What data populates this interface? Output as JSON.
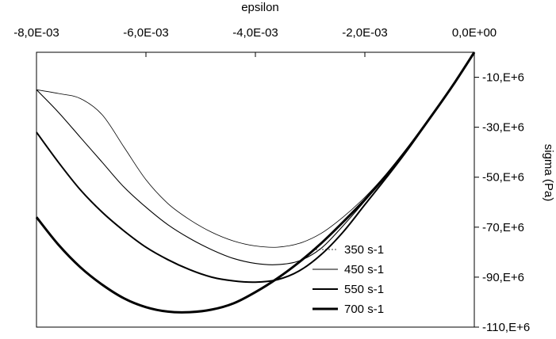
{
  "chart_data": {
    "type": "line",
    "xlabel": "epsilon",
    "ylabel": "sigma (Pa)",
    "xlim": [
      -0.008,
      0
    ],
    "ylim": [
      -110000000,
      0
    ],
    "x_axis_position": "top",
    "y_axis_position": "right",
    "grid": false,
    "legend_position": "bottom-right",
    "x_ticks": [
      {
        "value": -0.008,
        "label": "-8,0E-03"
      },
      {
        "value": -0.006,
        "label": "-6,0E-03"
      },
      {
        "value": -0.004,
        "label": "-4,0E-03"
      },
      {
        "value": -0.002,
        "label": "-2,0E-03"
      },
      {
        "value": 0,
        "label": "0,0E+00"
      }
    ],
    "y_ticks": [
      {
        "value": -10000000,
        "label": "-10,E+6"
      },
      {
        "value": -30000000,
        "label": "-30,E+6"
      },
      {
        "value": -50000000,
        "label": "-50,E+6"
      },
      {
        "value": -70000000,
        "label": "-70,E+6"
      },
      {
        "value": -90000000,
        "label": "-90,E+6"
      },
      {
        "value": -110000000,
        "label": "-110,E+6"
      }
    ],
    "series": [
      {
        "name": "350 s-1",
        "color": "#000000",
        "width": 0.8,
        "x": [
          -0.008,
          -0.0076,
          -0.0072,
          -0.0068,
          -0.0064,
          -0.006,
          -0.0056,
          -0.0052,
          -0.0048,
          -0.0044,
          -0.004,
          -0.0036,
          -0.0032,
          -0.0028,
          -0.0024,
          -0.002,
          -0.0016,
          -0.0012,
          -0.0008,
          -0.0004,
          0
        ],
        "y": [
          -15000000,
          -16500000,
          -18500000,
          -25000000,
          -38000000,
          -51000000,
          -60500000,
          -67000000,
          -72000000,
          -75500000,
          -77500000,
          -78000000,
          -76500000,
          -72500000,
          -66000000,
          -58000000,
          -48500000,
          -37500000,
          -26000000,
          -13500000,
          0
        ]
      },
      {
        "name": "450 s-1",
        "color": "#000000",
        "width": 1.1,
        "x": [
          -0.008,
          -0.0076,
          -0.0072,
          -0.0068,
          -0.0064,
          -0.006,
          -0.0056,
          -0.0052,
          -0.0048,
          -0.0044,
          -0.004,
          -0.0036,
          -0.0032,
          -0.0028,
          -0.0024,
          -0.002,
          -0.0016,
          -0.0012,
          -0.0008,
          -0.0004,
          0
        ],
        "y": [
          -15000000,
          -24000000,
          -34000000,
          -44000000,
          -54000000,
          -62000000,
          -69000000,
          -74500000,
          -79000000,
          -82500000,
          -84500000,
          -85000000,
          -83500000,
          -78500000,
          -69500000,
          -59500000,
          -49000000,
          -38000000,
          -26000000,
          -13500000,
          0
        ]
      },
      {
        "name": "550 s-1",
        "color": "#000000",
        "width": 2.0,
        "x": [
          -0.008,
          -0.0076,
          -0.0072,
          -0.0068,
          -0.0064,
          -0.006,
          -0.0056,
          -0.0052,
          -0.0048,
          -0.0044,
          -0.004,
          -0.0036,
          -0.0032,
          -0.0028,
          -0.0024,
          -0.002,
          -0.0016,
          -0.0012,
          -0.0008,
          -0.0004,
          0
        ],
        "y": [
          -32000000,
          -44000000,
          -55000000,
          -64000000,
          -71500000,
          -78000000,
          -83000000,
          -87000000,
          -90000000,
          -91500000,
          -92000000,
          -91000000,
          -87500000,
          -81000000,
          -72000000,
          -61000000,
          -50000000,
          -38500000,
          -26000000,
          -13500000,
          0
        ]
      },
      {
        "name": "700 s-1",
        "color": "#000000",
        "width": 3.0,
        "x": [
          -0.008,
          -0.0076,
          -0.0072,
          -0.0068,
          -0.0064,
          -0.006,
          -0.0056,
          -0.0052,
          -0.0048,
          -0.0044,
          -0.004,
          -0.0036,
          -0.0032,
          -0.0028,
          -0.0024,
          -0.002,
          -0.0016,
          -0.0012,
          -0.0008,
          -0.0004,
          0
        ],
        "y": [
          -66000000,
          -77000000,
          -86000000,
          -93000000,
          -98500000,
          -102000000,
          -103800000,
          -104000000,
          -103000000,
          -100500000,
          -96000000,
          -90500000,
          -84000000,
          -76500000,
          -68000000,
          -59000000,
          -49000000,
          -38000000,
          -26000000,
          -13500000,
          0
        ]
      }
    ]
  }
}
